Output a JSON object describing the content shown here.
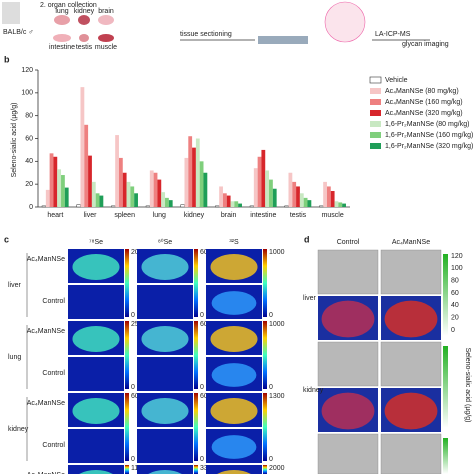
{
  "panel_a": {
    "step": "2. organ collection",
    "strain": "BALB/c ♂",
    "organs": [
      "lung",
      "kidney",
      "brain",
      "intestine",
      "testis",
      "muscle"
    ],
    "sectioning": "tissue sectioning",
    "method": "LA-ICP-MS",
    "output": "glycan  imaging"
  },
  "panel_labels": [
    "b",
    "c",
    "d"
  ],
  "chart_data": {
    "type": "bar",
    "y_label": "Seleno-sialic acid (µg/g)",
    "categories": [
      "heart",
      "liver",
      "spleen",
      "lung",
      "kidney",
      "brain",
      "intestine",
      "testis",
      "muscle"
    ],
    "series": [
      {
        "name": "Vehicle",
        "color": "#ffffff",
        "values": [
          1,
          2,
          1,
          1,
          2,
          1,
          1,
          1,
          1
        ]
      },
      {
        "name": "Ac₄ManNSe (80 mg/kg)",
        "color": "#f6c6c6",
        "values": [
          15,
          105,
          63,
          32,
          43,
          18,
          34,
          30,
          22
        ]
      },
      {
        "name": "Ac₄ManNSe (160 mg/kg)",
        "color": "#ee8080",
        "values": [
          47,
          72,
          43,
          30,
          62,
          12,
          44,
          22,
          18
        ]
      },
      {
        "name": "Ac₄ManNSe (320 mg/kg)",
        "color": "#d7262b",
        "values": [
          44,
          45,
          30,
          24,
          52,
          10,
          50,
          18,
          14
        ]
      },
      {
        "name": "1,6-Pr₂ManNSe (80 mg/kg)",
        "color": "#c8e8c2",
        "values": [
          33,
          22,
          22,
          13,
          60,
          5,
          32,
          12,
          5
        ]
      },
      {
        "name": "1,6-Pr₂ManNSe (160 mg/kg)",
        "color": "#7fcf7c",
        "values": [
          28,
          12,
          18,
          8,
          40,
          5,
          24,
          8,
          4
        ]
      },
      {
        "name": "1,6-Pr₂ManNSe (320 mg/kg)",
        "color": "#1f9e58",
        "values": [
          17,
          10,
          12,
          6,
          30,
          3,
          16,
          6,
          3
        ]
      }
    ],
    "ylim": [
      0,
      120
    ],
    "yticks": [
      0,
      20,
      40,
      60,
      80,
      100,
      120
    ],
    "legend": "top-right"
  },
  "panel_c": {
    "isotopes": [
      "⁷⁸Se",
      "⁸⁰Se",
      "³²S"
    ],
    "rows": [
      {
        "organ": "liver",
        "treated": "Ac₄ManNSe",
        "control": "Control",
        "max": [
          20,
          60,
          1000
        ],
        "min": [
          0,
          0,
          0
        ]
      },
      {
        "organ": "lung",
        "treated": "Ac₄ManNSe",
        "control": "Control",
        "max": [
          25,
          60,
          1000
        ],
        "min": [
          0,
          0,
          0
        ]
      },
      {
        "organ": "kidney",
        "treated": "Ac₄ManNSe",
        "control": "Control",
        "max": [
          60,
          60,
          1300
        ],
        "min": [
          0,
          0,
          0
        ]
      },
      {
        "treated": "Ac₄ManNSe",
        "max": [
          11,
          33,
          2000
        ]
      }
    ]
  },
  "panel_d": {
    "columns": [
      "Control",
      "Ac₄ManNSe"
    ],
    "organs": [
      "liver",
      "kidney"
    ],
    "scale_ticks": [
      120,
      100,
      80,
      60,
      40,
      20,
      0
    ],
    "scale_label": "Seleno-sialic acid (µg/g)"
  }
}
